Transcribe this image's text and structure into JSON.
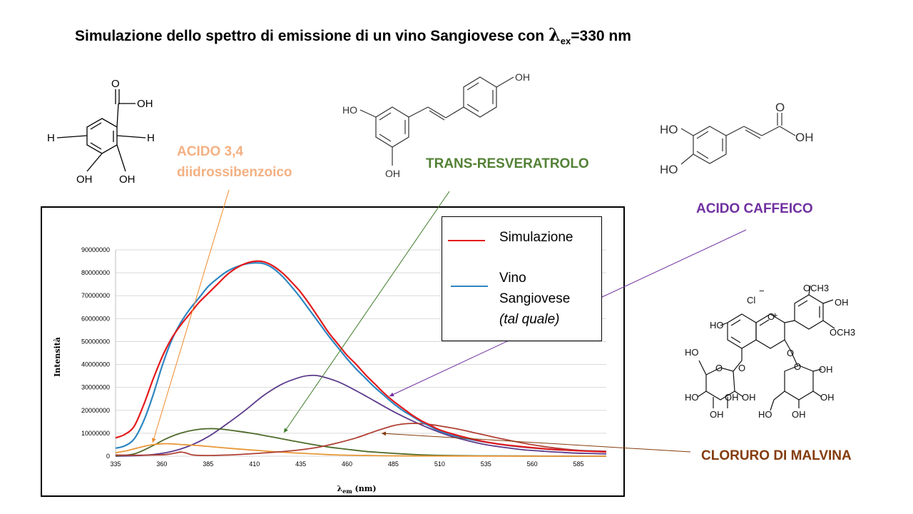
{
  "title": {
    "prefix": "Simulazione dello spettro di emissione di un vino Sangiovese con ",
    "lambda": "λ",
    "sub": "ex",
    "suffix": "=330 nm"
  },
  "labels": {
    "acido34_line1": "ACIDO 3,4",
    "acido34_line2": "diidrossibenzoico",
    "trans": "TRANS-RESVERATROLO",
    "caffeico": "ACIDO CAFFEICO",
    "malvina": "CLORURO DI MALVINA"
  },
  "legend": {
    "sim": "Simulazione",
    "vino1": "Vino",
    "vino2": "Sangiovese",
    "vino3": "(tal quale)"
  },
  "molecules": {
    "dhb": [
      "O",
      "OH",
      "H",
      "H",
      "OH",
      "OH"
    ],
    "resv": [
      "OH",
      "HO",
      "OH"
    ],
    "caff": [
      "O",
      "HO",
      "OH",
      "HO"
    ],
    "malv": [
      "Cl",
      "−",
      "+",
      "OCH3",
      "OH",
      "OCH3",
      "HO",
      "O",
      "O",
      "O",
      "HO",
      "O",
      "HO",
      "OH",
      "OH",
      "OH",
      "O",
      "OH",
      "HO",
      "OH",
      "OH"
    ]
  },
  "chart_data": {
    "type": "line",
    "xlabel_main": "λ",
    "xlabel_sub": "em",
    "xlabel_unit": " (nm)",
    "ylabel": "Intensità",
    "xlim": [
      335,
      600
    ],
    "ylim": [
      0,
      90000000
    ],
    "xticks": [
      "335",
      "360",
      "385",
      "410",
      "435",
      "460",
      "485",
      "510",
      "535",
      "560",
      "585"
    ],
    "yticks": [
      "0",
      "10000000",
      "20000000",
      "30000000",
      "40000000",
      "50000000",
      "60000000",
      "70000000",
      "80000000",
      "90000000"
    ],
    "grid": "horizontal",
    "series": [
      {
        "name": "Simulazione",
        "color": "#e31a1c",
        "points": [
          [
            335,
            8000000
          ],
          [
            340,
            9500000
          ],
          [
            345,
            13000000
          ],
          [
            350,
            22000000
          ],
          [
            355,
            33000000
          ],
          [
            360,
            43000000
          ],
          [
            365,
            51000000
          ],
          [
            370,
            57000000
          ],
          [
            375,
            62000000
          ],
          [
            380,
            67000000
          ],
          [
            385,
            71000000
          ],
          [
            390,
            75000000
          ],
          [
            395,
            79000000
          ],
          [
            400,
            82000000
          ],
          [
            405,
            84000000
          ],
          [
            410,
            85000000
          ],
          [
            415,
            84800000
          ],
          [
            420,
            83000000
          ],
          [
            425,
            80000000
          ],
          [
            430,
            76000000
          ],
          [
            435,
            71500000
          ],
          [
            440,
            66000000
          ],
          [
            445,
            60000000
          ],
          [
            450,
            54000000
          ],
          [
            455,
            49000000
          ],
          [
            460,
            44000000
          ],
          [
            465,
            40000000
          ],
          [
            470,
            35500000
          ],
          [
            475,
            31500000
          ],
          [
            480,
            27500000
          ],
          [
            485,
            24000000
          ],
          [
            490,
            21000000
          ],
          [
            495,
            18000000
          ],
          [
            500,
            15500000
          ],
          [
            505,
            13500000
          ],
          [
            510,
            11500000
          ],
          [
            520,
            9000000
          ],
          [
            530,
            7000000
          ],
          [
            540,
            5500000
          ],
          [
            550,
            4500000
          ],
          [
            560,
            3700000
          ],
          [
            570,
            3000000
          ],
          [
            580,
            2600000
          ],
          [
            590,
            2200000
          ],
          [
            600,
            2000000
          ]
        ]
      },
      {
        "name": "Vino Sangiovese (tal quale)",
        "color": "#2e86c1",
        "points": [
          [
            335,
            3500000
          ],
          [
            340,
            4500000
          ],
          [
            345,
            7500000
          ],
          [
            350,
            15000000
          ],
          [
            355,
            26000000
          ],
          [
            360,
            39000000
          ],
          [
            365,
            50000000
          ],
          [
            370,
            58000000
          ],
          [
            375,
            64000000
          ],
          [
            380,
            69000000
          ],
          [
            385,
            74000000
          ],
          [
            390,
            77500000
          ],
          [
            395,
            80500000
          ],
          [
            400,
            82500000
          ],
          [
            405,
            83800000
          ],
          [
            410,
            84300000
          ],
          [
            415,
            84000000
          ],
          [
            420,
            82000000
          ],
          [
            425,
            78500000
          ],
          [
            430,
            74000000
          ],
          [
            435,
            69000000
          ],
          [
            440,
            63500000
          ],
          [
            445,
            58000000
          ],
          [
            450,
            52500000
          ],
          [
            455,
            47500000
          ],
          [
            460,
            42500000
          ],
          [
            465,
            38000000
          ],
          [
            470,
            34000000
          ],
          [
            475,
            30000000
          ],
          [
            480,
            26500000
          ],
          [
            485,
            23000000
          ],
          [
            490,
            20000000
          ],
          [
            495,
            17500000
          ],
          [
            500,
            15000000
          ],
          [
            505,
            13000000
          ],
          [
            510,
            11000000
          ],
          [
            520,
            8500000
          ],
          [
            530,
            6800000
          ],
          [
            540,
            5500000
          ],
          [
            550,
            4400000
          ],
          [
            560,
            3600000
          ],
          [
            570,
            3000000
          ],
          [
            580,
            2600000
          ],
          [
            590,
            2300000
          ],
          [
            600,
            2100000
          ]
        ]
      },
      {
        "name": "Acido caffeico",
        "color": "#5b3a8c",
        "points": [
          [
            335,
            0
          ],
          [
            345,
            200000
          ],
          [
            355,
            700000
          ],
          [
            365,
            2000000
          ],
          [
            375,
            4500000
          ],
          [
            385,
            8500000
          ],
          [
            395,
            14000000
          ],
          [
            405,
            20000000
          ],
          [
            415,
            26500000
          ],
          [
            425,
            31500000
          ],
          [
            435,
            34500000
          ],
          [
            440,
            35200000
          ],
          [
            445,
            35000000
          ],
          [
            455,
            32500000
          ],
          [
            465,
            28500000
          ],
          [
            475,
            24000000
          ],
          [
            485,
            19500000
          ],
          [
            495,
            15500000
          ],
          [
            505,
            12000000
          ],
          [
            515,
            9000000
          ],
          [
            525,
            6800000
          ],
          [
            535,
            5000000
          ],
          [
            545,
            3800000
          ],
          [
            555,
            2800000
          ],
          [
            565,
            2200000
          ],
          [
            575,
            1700000
          ],
          [
            585,
            1300000
          ],
          [
            600,
            1000000
          ]
        ]
      },
      {
        "name": "Trans-resveratrolo",
        "color": "#4e6b2a",
        "points": [
          [
            335,
            200000
          ],
          [
            345,
            1000000
          ],
          [
            355,
            4500000
          ],
          [
            362,
            7500000
          ],
          [
            370,
            10000000
          ],
          [
            378,
            11500000
          ],
          [
            385,
            12000000
          ],
          [
            392,
            11800000
          ],
          [
            400,
            11000000
          ],
          [
            410,
            9800000
          ],
          [
            420,
            8300000
          ],
          [
            430,
            6800000
          ],
          [
            440,
            5300000
          ],
          [
            450,
            4000000
          ],
          [
            460,
            3000000
          ],
          [
            470,
            2100000
          ],
          [
            480,
            1500000
          ],
          [
            490,
            1000000
          ],
          [
            500,
            600000
          ],
          [
            510,
            350000
          ],
          [
            530,
            150000
          ],
          [
            560,
            50000
          ],
          [
            600,
            0
          ]
        ]
      },
      {
        "name": "Acido 3,4 diidrossibenzoico",
        "color": "#e89838",
        "points": [
          [
            335,
            1500000
          ],
          [
            340,
            2200000
          ],
          [
            345,
            3200000
          ],
          [
            350,
            4200000
          ],
          [
            355,
            5000000
          ],
          [
            360,
            5400000
          ],
          [
            365,
            5400000
          ],
          [
            370,
            5100000
          ],
          [
            380,
            4600000
          ],
          [
            390,
            3900000
          ],
          [
            400,
            3200000
          ],
          [
            410,
            2600000
          ],
          [
            420,
            2000000
          ],
          [
            430,
            1500000
          ],
          [
            440,
            1100000
          ],
          [
            450,
            700000
          ],
          [
            460,
            450000
          ],
          [
            480,
            200000
          ],
          [
            500,
            80000
          ],
          [
            530,
            20000
          ],
          [
            600,
            0
          ]
        ]
      },
      {
        "name": "Cloruro di malvina",
        "color": "#b04034",
        "points": [
          [
            335,
            500000
          ],
          [
            345,
            400000
          ],
          [
            355,
            500000
          ],
          [
            362,
            700000
          ],
          [
            367,
            1300000
          ],
          [
            370,
            1800000
          ],
          [
            373,
            1400000
          ],
          [
            377,
            500000
          ],
          [
            385,
            300000
          ],
          [
            395,
            500000
          ],
          [
            405,
            900000
          ],
          [
            415,
            1400000
          ],
          [
            425,
            2000000
          ],
          [
            435,
            2800000
          ],
          [
            445,
            4000000
          ],
          [
            455,
            5800000
          ],
          [
            465,
            8000000
          ],
          [
            475,
            10800000
          ],
          [
            485,
            13300000
          ],
          [
            490,
            14000000
          ],
          [
            495,
            14300000
          ],
          [
            500,
            14200000
          ],
          [
            505,
            13800000
          ],
          [
            510,
            13200000
          ],
          [
            520,
            11800000
          ],
          [
            530,
            10000000
          ],
          [
            540,
            8200000
          ],
          [
            550,
            6500000
          ],
          [
            560,
            5000000
          ],
          [
            570,
            3800000
          ],
          [
            580,
            2900000
          ],
          [
            590,
            2200000
          ],
          [
            600,
            1800000
          ]
        ]
      }
    ]
  }
}
